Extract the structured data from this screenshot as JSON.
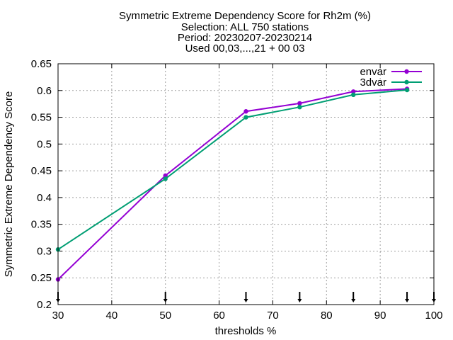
{
  "chart_data": {
    "type": "line",
    "title_lines": [
      "Symmetric Extreme Dependency Score  for Rh2m (%)",
      "Selection: ALL    750 stations",
      "Period: 20230207-20230214",
      "Used 00,03,...,21 + 00 03"
    ],
    "xlabel": "thresholds %",
    "ylabel": "Symmetric Extreme Dependency Score",
    "xlim": [
      30,
      100
    ],
    "ylim": [
      0.2,
      0.65
    ],
    "xticks": [
      30,
      40,
      50,
      60,
      70,
      80,
      90,
      100
    ],
    "yticks": [
      0.2,
      0.25,
      0.3,
      0.35,
      0.4,
      0.45,
      0.5,
      0.55,
      0.6,
      0.65
    ],
    "ytick_labels": [
      "0.2",
      "0.25",
      "0.3",
      "0.35",
      "0.4",
      "0.45",
      "0.5",
      "0.55",
      "0.6",
      "0.65"
    ],
    "grid": true,
    "legend_position": "top-right",
    "threshold_markers": [
      30,
      50,
      65,
      75,
      85,
      95,
      100
    ],
    "series": [
      {
        "name": "envar",
        "color": "#9400d3",
        "x": [
          30,
          50,
          65,
          75,
          85,
          95
        ],
        "values": [
          0.247,
          0.441,
          0.561,
          0.576,
          0.598,
          0.603
        ]
      },
      {
        "name": "3dvar",
        "color": "#009e73",
        "x": [
          30,
          50,
          65,
          75,
          85,
          95
        ],
        "values": [
          0.303,
          0.435,
          0.55,
          0.569,
          0.592,
          0.601
        ]
      }
    ]
  }
}
